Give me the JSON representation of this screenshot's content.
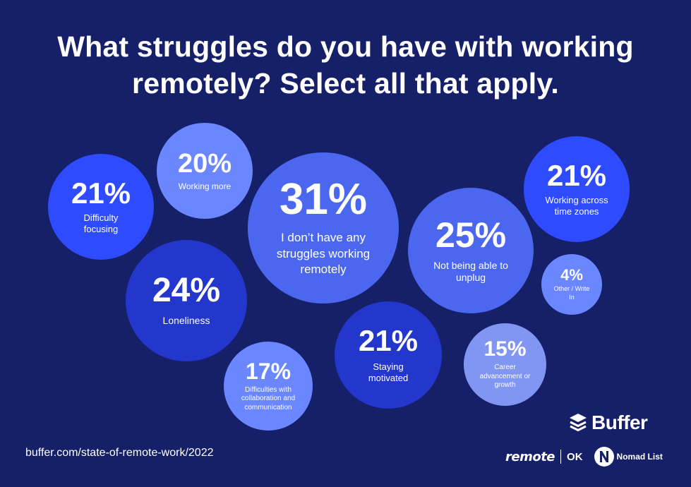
{
  "chart_data": {
    "type": "bubble",
    "title": "What struggles do you have with working remotely? Select all that apply.",
    "unit": "%",
    "series": [
      {
        "values": [
          {
            "key": "difficulty-focusing",
            "value": 21,
            "value_label": "21%",
            "label": "Difficulty focusing",
            "color": "#2e4bff"
          },
          {
            "key": "working-more",
            "value": 20,
            "value_label": "20%",
            "label": "Working more",
            "color": "#6b87ff"
          },
          {
            "key": "no-struggles",
            "value": 31,
            "value_label": "31%",
            "label": "I don’t have any struggles working remotely",
            "color": "#4b67f0"
          },
          {
            "key": "loneliness",
            "value": 24,
            "value_label": "24%",
            "label": "Loneliness",
            "color": "#2437cc"
          },
          {
            "key": "collab",
            "value": 17,
            "value_label": "17%",
            "label": "Difficulties with collaboration and communication",
            "color": "#6b87ff"
          },
          {
            "key": "staying-motivated",
            "value": 21,
            "value_label": "21%",
            "label": "Staying motivated",
            "color": "#2437cc"
          },
          {
            "key": "unplug",
            "value": 25,
            "value_label": "25%",
            "label": "Not being able to unplug",
            "color": "#4b67f0"
          },
          {
            "key": "time-zones",
            "value": 21,
            "value_label": "21%",
            "label": "Working across time zones",
            "color": "#2e4bff"
          },
          {
            "key": "other",
            "value": 4,
            "value_label": "4%",
            "label": "Other / Write In",
            "color": "#6b87ff"
          },
          {
            "key": "career",
            "value": 15,
            "value_label": "15%",
            "label": "Career advancement or growth",
            "color": "#8195f2"
          }
        ]
      }
    ]
  },
  "footer": {
    "url": "buffer.com/state-of-remote-work/2022"
  },
  "logos": {
    "buffer": "Buffer",
    "remote": "remote",
    "ok": "OK",
    "nomad": "Nomad List",
    "buffer_icon": "stack-layers-icon",
    "nomad_icon": "n-badge-icon"
  },
  "colors": {
    "background": "#162068",
    "text": "#ffffff"
  }
}
